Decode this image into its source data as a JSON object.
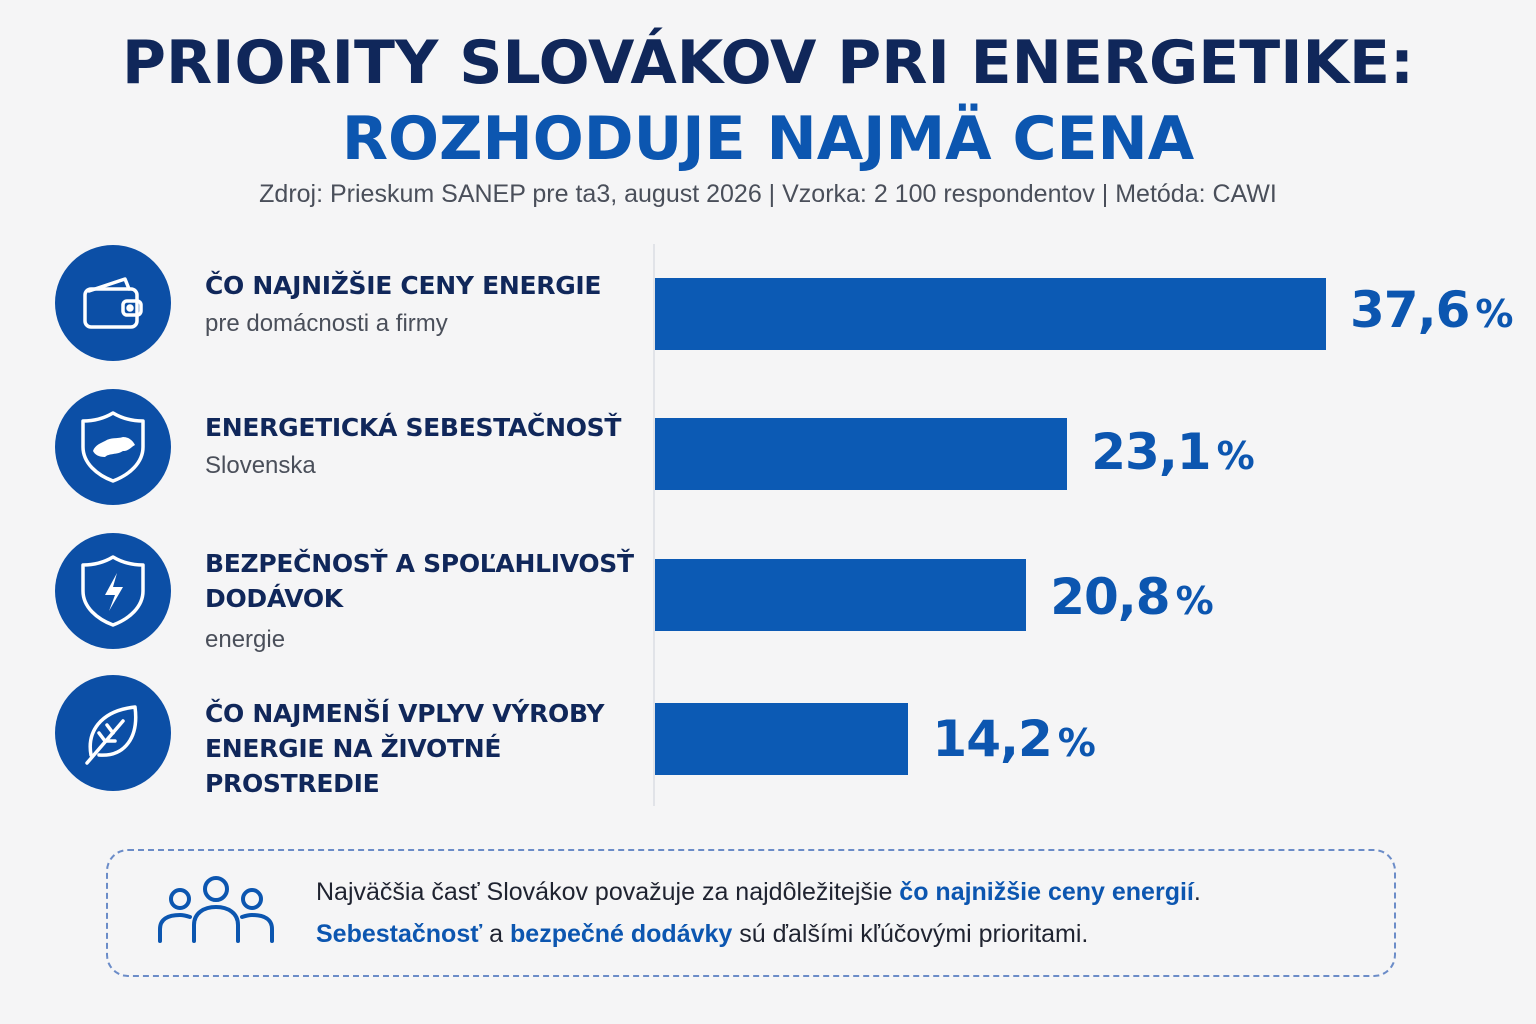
{
  "header": {
    "title_line1": "PRIORITY SLOVÁKOV PRI ENERGETIKE:",
    "title_line2": "ROZHODUJE NAJMÄ CENA",
    "source": "Zdroj: Prieskum SANEP pre ta3, august 2026 | Vzorka: 2 100 respondentov | Metóda: CAWI"
  },
  "chart_data": {
    "type": "bar",
    "orientation": "horizontal",
    "categories": [
      "ČO NAJNIŽŠIE CENY ENERGIE pre domácnosti a firmy",
      "ENERGETICKÁ SEBESTAČNOSŤ Slovenska",
      "BEZPEČNOSŤ A SPOĽAHLIVOSŤ DODÁVOK energie",
      "ČO NAJMENŠÍ VPLYV VÝROBY ENERGIE NA ŽIVOTNÉ PROSTREDIE"
    ],
    "values": [
      37.6,
      23.1,
      20.8,
      14.2
    ],
    "unit": "%",
    "grid": false,
    "bar_color": "#0c5ab4"
  },
  "rows": [
    {
      "label_main": "ČO NAJNIŽŠIE CENY ENERGIE",
      "label_sub": "pre domácnosti a firmy",
      "value_text": "37,6",
      "unit": "%",
      "icon": "wallet-icon"
    },
    {
      "label_main": "ENERGETICKÁ SEBESTAČNOSŤ",
      "label_sub": "Slovenska",
      "value_text": "23,1",
      "unit": "%",
      "icon": "shield-slovakia-icon"
    },
    {
      "label_main": "BEZPEČNOSŤ A SPOĽAHLIVOSŤ DODÁVOK",
      "label_sub": "energie",
      "value_text": "20,8",
      "unit": "%",
      "icon": "shield-lightning-icon"
    },
    {
      "label_main": "ČO NAJMENŠÍ VPLYV VÝROBY ENERGIE NA ŽIVOTNÉ PROSTREDIE",
      "label_sub": "",
      "value_text": "14,2",
      "unit": "%",
      "icon": "leaf-icon"
    }
  ],
  "note": {
    "icon": "people-group-icon",
    "p1": "Najväčšia časť Slovákov považuje za najdôležitejšie ",
    "h1": "čo najnižšie ceny energií",
    "p2": ".",
    "h2": "Sebestačnosť",
    "p3": " a ",
    "h3": "bezpečné dodávky",
    "p4": " sú ďalšími kľúčovými prioritami."
  },
  "colors": {
    "title_dark": "#10275a",
    "accent": "#0c56b0",
    "bar": "#0c5ab4",
    "icon_bg": "#0c4fa6"
  }
}
